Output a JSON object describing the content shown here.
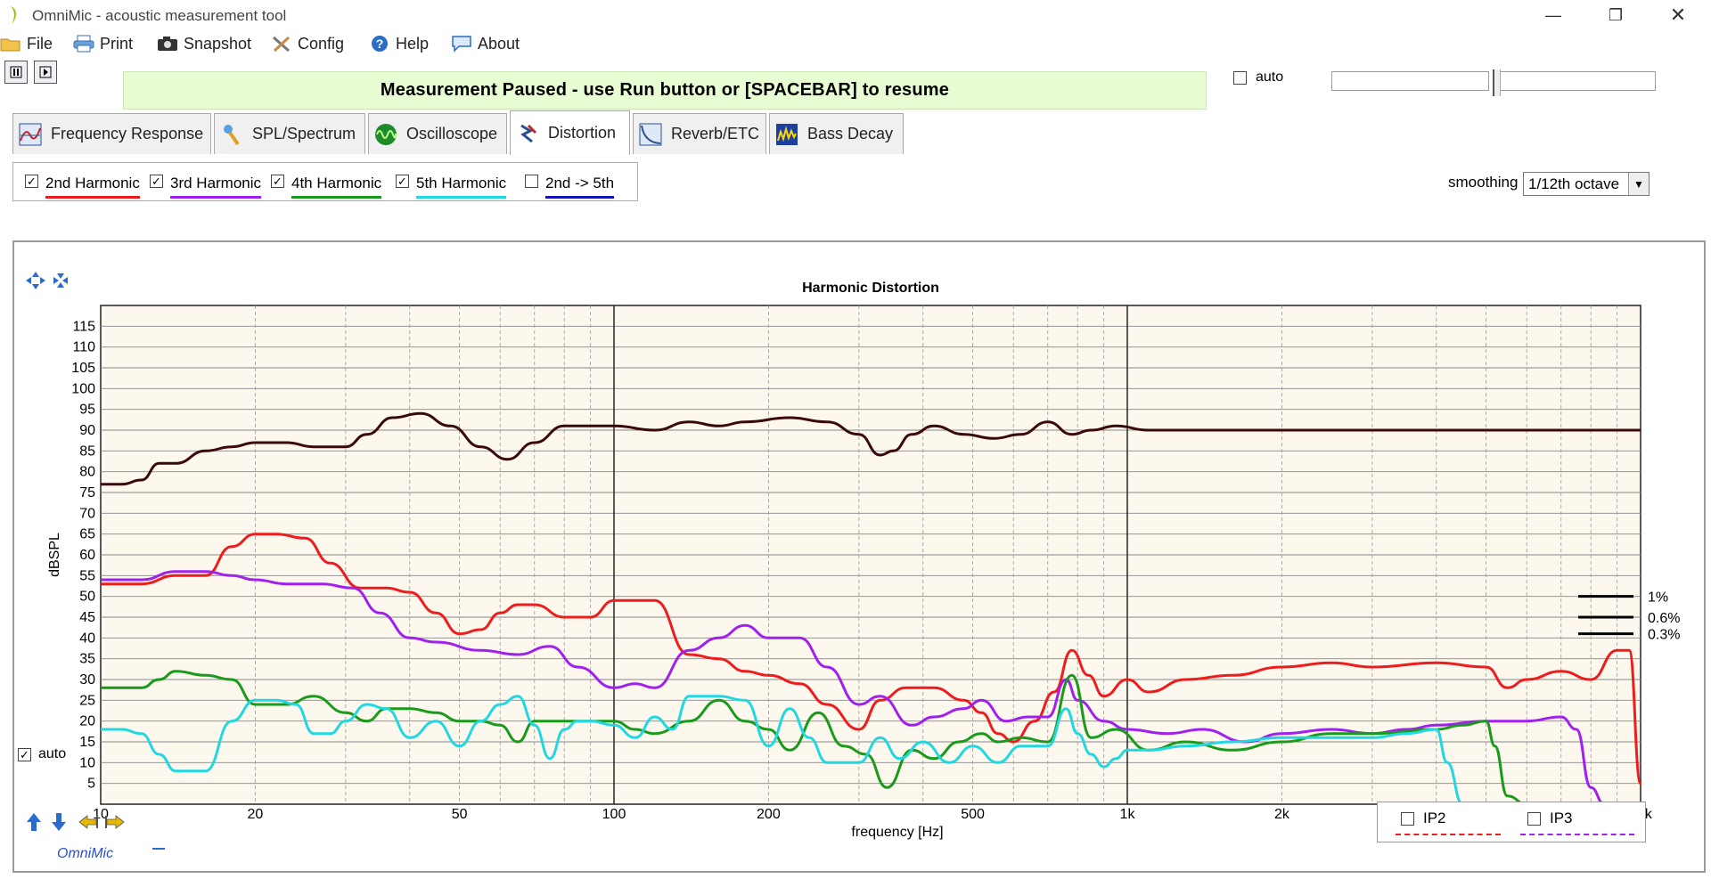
{
  "window": {
    "title": "OmniMic - acoustic measurement tool"
  },
  "menu": [
    {
      "label": "File",
      "icon": "folder-icon"
    },
    {
      "label": "Print",
      "icon": "printer-icon"
    },
    {
      "label": "Snapshot",
      "icon": "camera-icon"
    },
    {
      "label": "Config",
      "icon": "tools-icon"
    },
    {
      "label": "Help",
      "icon": "help-icon"
    },
    {
      "label": "About",
      "icon": "speech-bubble-icon"
    }
  ],
  "status": {
    "message": "Measurement Paused - use Run button or [SPACEBAR] to resume"
  },
  "top_auto": {
    "label": "auto",
    "checked": false
  },
  "tabs": [
    {
      "label": "Frequency Response",
      "active": false
    },
    {
      "label": "SPL/Spectrum",
      "active": false
    },
    {
      "label": "Oscilloscope",
      "active": false
    },
    {
      "label": "Distortion",
      "active": true
    },
    {
      "label": "Reverb/ETC",
      "active": false
    },
    {
      "label": "Bass Decay",
      "active": false
    }
  ],
  "harmonics": [
    {
      "label": "2nd Harmonic",
      "checked": true,
      "color": "#ee1c1c"
    },
    {
      "label": "3rd Harmonic",
      "checked": true,
      "color": "#a020f0"
    },
    {
      "label": "4th Harmonic",
      "checked": true,
      "color": "#1a9a1a"
    },
    {
      "label": "5th Harmonic",
      "checked": true,
      "color": "#22d8e0"
    },
    {
      "label": "2nd -> 5th",
      "checked": false,
      "color": "#1414b4"
    }
  ],
  "smoothing": {
    "label": "smoothing",
    "value": "1/12th octave"
  },
  "plot_auto": {
    "label": "auto",
    "checked": true
  },
  "brand": {
    "name": "OmniMic"
  },
  "ip": [
    {
      "label": "IP2",
      "checked": false,
      "color": "#ee1c1c"
    },
    {
      "label": "IP3",
      "checked": false,
      "color": "#a020f0"
    }
  ],
  "chart_data": {
    "type": "line",
    "title": "Harmonic Distortion",
    "xlabel": "frequency [Hz]",
    "ylabel": "dBSPL",
    "xscale": "log",
    "xlim": [
      10,
      10000
    ],
    "ylim": [
      0,
      120
    ],
    "grid": true,
    "x_tick_labels": [
      {
        "v": 10,
        "t": "10"
      },
      {
        "v": 20,
        "t": "20"
      },
      {
        "v": 50,
        "t": "50"
      },
      {
        "v": 100,
        "t": "100"
      },
      {
        "v": 200,
        "t": "200"
      },
      {
        "v": 500,
        "t": "500"
      },
      {
        "v": 1000,
        "t": "1k"
      },
      {
        "v": 2000,
        "t": "2k"
      },
      {
        "v": 5000,
        "t": "5k"
      },
      {
        "v": 10000,
        "t": "10k"
      }
    ],
    "y_ticks": [
      5,
      10,
      15,
      20,
      25,
      30,
      35,
      40,
      45,
      50,
      55,
      60,
      65,
      70,
      75,
      80,
      85,
      90,
      95,
      100,
      105,
      110,
      115
    ],
    "percent_markers": [
      {
        "label": "1%",
        "db": 50
      },
      {
        "label": "0.6%",
        "db": 45
      },
      {
        "label": "0.3%",
        "db": 41
      }
    ],
    "series": [
      {
        "key": "fundamental",
        "color": "#3a0a0a",
        "x": [
          10,
          11,
          12,
          13,
          14,
          16,
          18,
          20,
          23,
          26,
          30,
          33,
          37,
          42,
          48,
          55,
          62,
          70,
          80,
          90,
          100,
          120,
          140,
          160,
          180,
          220,
          260,
          300,
          330,
          350,
          380,
          420,
          480,
          550,
          620,
          700,
          780,
          850,
          950,
          1100,
          1300,
          1600,
          2000,
          3000,
          4000,
          5000,
          6000,
          8000,
          10000
        ],
        "y": [
          77,
          77,
          78,
          82,
          82,
          85,
          86,
          87,
          87,
          86,
          86,
          89,
          93,
          94,
          91,
          86,
          83,
          87,
          91,
          91,
          91,
          90,
          92,
          91,
          92,
          93,
          92,
          89,
          84,
          85,
          89,
          91,
          89,
          88,
          89,
          92,
          89,
          90,
          91,
          90,
          90,
          90,
          90,
          90,
          90,
          90,
          90,
          90,
          90
        ]
      },
      {
        "key": "h2",
        "color": "#ee1c1c",
        "x": [
          10,
          12,
          14,
          16,
          18,
          20,
          22,
          25,
          28,
          32,
          36,
          40,
          45,
          50,
          55,
          60,
          65,
          70,
          80,
          90,
          100,
          110,
          120,
          140,
          160,
          180,
          200,
          230,
          260,
          300,
          330,
          370,
          420,
          480,
          520,
          560,
          600,
          660,
          720,
          780,
          840,
          900,
          1000,
          1100,
          1300,
          1600,
          2000,
          2500,
          3000,
          4000,
          5000,
          5500,
          6000,
          7000,
          8000,
          9000,
          9500,
          10000
        ],
        "y": [
          53,
          53,
          55,
          55,
          62,
          65,
          65,
          64,
          58,
          52,
          52,
          51,
          46,
          41,
          42,
          46,
          48,
          48,
          45,
          45,
          49,
          49,
          49,
          36,
          35,
          32,
          31,
          29,
          24,
          18,
          25,
          28,
          28,
          25,
          22,
          17,
          15,
          20,
          27,
          37,
          31,
          26,
          30,
          27,
          30,
          31,
          33,
          34,
          33,
          34,
          33,
          28,
          30,
          32,
          30,
          37,
          37,
          5
        ]
      },
      {
        "key": "h3",
        "color": "#a020f0",
        "x": [
          10,
          12,
          14,
          16,
          18,
          20,
          23,
          27,
          31,
          35,
          40,
          45,
          55,
          65,
          75,
          85,
          100,
          110,
          120,
          140,
          160,
          180,
          200,
          230,
          260,
          300,
          330,
          380,
          420,
          480,
          520,
          580,
          640,
          700,
          760,
          800,
          900,
          1000,
          1200,
          1400,
          1700,
          2000,
          2500,
          3000,
          3500,
          4000,
          5000,
          6000,
          7000,
          7500,
          8000,
          8500,
          9000
        ],
        "y": [
          54,
          54,
          56,
          56,
          55,
          54,
          53,
          53,
          52,
          46,
          40,
          39,
          37,
          36,
          38,
          33,
          28,
          29,
          28,
          37,
          40,
          43,
          40,
          40,
          33,
          24,
          26,
          19,
          21,
          23,
          25,
          20,
          21,
          21,
          30,
          25,
          20,
          18,
          17,
          18,
          15,
          17,
          18,
          17,
          18,
          19,
          20,
          20,
          21,
          18,
          4,
          0,
          0
        ]
      },
      {
        "key": "h4",
        "color": "#1a9a1a",
        "x": [
          10,
          12,
          13,
          14,
          16,
          18,
          20,
          23,
          26,
          30,
          33,
          36,
          40,
          45,
          50,
          55,
          60,
          65,
          70,
          80,
          90,
          100,
          110,
          120,
          140,
          160,
          180,
          200,
          220,
          250,
          280,
          310,
          340,
          380,
          420,
          470,
          520,
          560,
          620,
          700,
          780,
          850,
          950,
          1100,
          1300,
          1600,
          2000,
          2500,
          3000,
          4000,
          4500,
          5000,
          5200,
          5500,
          6000
        ],
        "y": [
          28,
          28,
          30,
          32,
          31,
          30,
          24,
          24,
          26,
          22,
          20,
          23,
          23,
          22,
          20,
          20,
          19,
          15,
          20,
          20,
          20,
          20,
          18,
          17,
          20,
          25,
          20,
          18,
          13,
          22,
          14,
          12,
          4,
          13,
          11,
          15,
          17,
          15,
          16,
          15,
          31,
          16,
          18,
          13,
          15,
          13,
          15,
          17,
          17,
          18,
          19,
          20,
          14,
          2,
          0
        ]
      },
      {
        "key": "h5",
        "color": "#22d8e0",
        "x": [
          10,
          11,
          12,
          13,
          14,
          15,
          16,
          18,
          20,
          22,
          24,
          26,
          28,
          30,
          33,
          36,
          40,
          45,
          50,
          55,
          60,
          65,
          70,
          75,
          80,
          85,
          90,
          100,
          110,
          120,
          130,
          140,
          160,
          180,
          200,
          220,
          240,
          260,
          300,
          330,
          360,
          400,
          450,
          500,
          560,
          620,
          700,
          760,
          800,
          850,
          900,
          950,
          1000,
          1100,
          1300,
          1600,
          2000,
          2500,
          3000,
          3500,
          4000,
          4200,
          4500,
          5000,
          5500
        ],
        "y": [
          18,
          18,
          17,
          12,
          8,
          8,
          8,
          20,
          25,
          25,
          24,
          17,
          17,
          20,
          24,
          23,
          16,
          20,
          14,
          20,
          24,
          26,
          19,
          11,
          18,
          20,
          20,
          19,
          16,
          21,
          18,
          26,
          26,
          25,
          14,
          23,
          16,
          10,
          10,
          16,
          11,
          15,
          10,
          14,
          10,
          14,
          14,
          23,
          17,
          12,
          9,
          11,
          13,
          13,
          14,
          15,
          16,
          16,
          16,
          17,
          18,
          10,
          0,
          0,
          0
        ]
      }
    ]
  }
}
